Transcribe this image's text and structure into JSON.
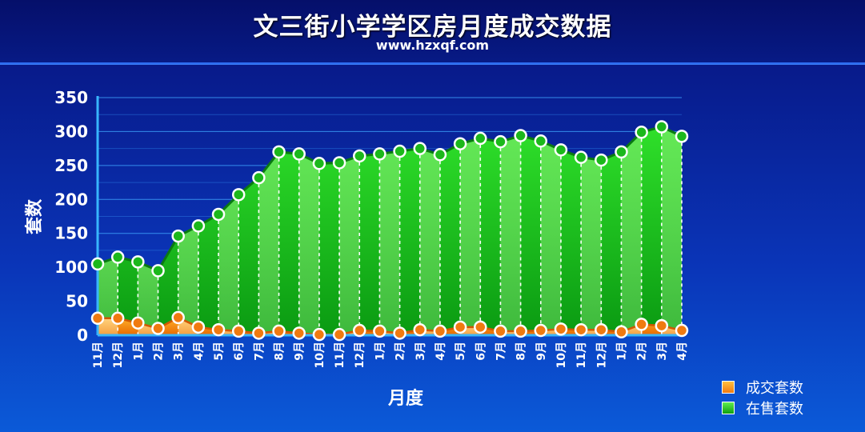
{
  "header": {
    "title": "文三街小学学区房月度成交数据",
    "subtitle": "www.hzxqf.com"
  },
  "colors": {
    "deal_series": "#f07a10",
    "stock_series": "#1ec81e",
    "background": "#0a2ea8"
  },
  "chart_data": {
    "type": "area",
    "title": "文三街小学学区房月度成交数据",
    "subtitle": "www.hzxqf.com",
    "xlabel": "月度",
    "ylabel": "套数",
    "ylim": [
      0,
      350
    ],
    "yticks": [
      0,
      50,
      100,
      150,
      200,
      250,
      300,
      350
    ],
    "grid": true,
    "legend_position": "right",
    "categories": [
      "11月",
      "12月",
      "1月",
      "2月",
      "3月",
      "4月",
      "5月",
      "6月",
      "7月",
      "8月",
      "9月",
      "10月",
      "11月",
      "12月",
      "1月",
      "2月",
      "3月",
      "4月",
      "5月",
      "6月",
      "7月",
      "8月",
      "9月",
      "10月",
      "11月",
      "12月",
      "1月",
      "2月",
      "3月",
      "4月"
    ],
    "series": [
      {
        "name": "成交套数",
        "color": "#f07a10",
        "values": [
          25,
          25,
          18,
          10,
          26,
          12,
          8,
          6,
          3,
          6,
          3,
          1,
          1,
          7,
          6,
          3,
          8,
          6,
          12,
          12,
          6,
          6,
          7,
          9,
          8,
          8,
          5,
          16,
          14,
          7
        ]
      },
      {
        "name": "在售套数",
        "color": "#1ec81e",
        "values": [
          105,
          115,
          108,
          95,
          146,
          161,
          178,
          207,
          232,
          270,
          267,
          253,
          254,
          264,
          267,
          271,
          275,
          266,
          282,
          290,
          285,
          294,
          286,
          273,
          262,
          258,
          270,
          299,
          307,
          293
        ]
      }
    ]
  }
}
